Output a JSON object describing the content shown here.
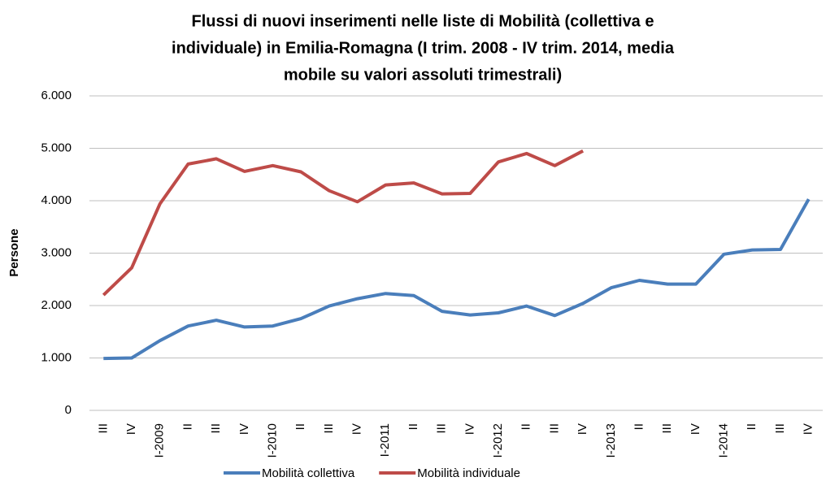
{
  "chart_data": {
    "type": "line",
    "title": [
      "Flussi di nuovi inserimenti nelle liste di Mobilità (collettiva e",
      "individuale) in Emilia-Romagna (I trim. 2008 - IV trim. 2014, media",
      "mobile su valori assoluti trimestrali)"
    ],
    "y_label": "Persone",
    "categories": [
      "III",
      "IV",
      "I-2009",
      "II",
      "III",
      "IV",
      "I-2010",
      "II",
      "III",
      "IV",
      "I-2011",
      "II",
      "III",
      "IV",
      "I-2012",
      "II",
      "III",
      "IV",
      "I-2013",
      "II",
      "III",
      "IV",
      "I-2014",
      "II",
      "III",
      "IV"
    ],
    "series": [
      {
        "name": "Mobilità collettiva",
        "color": "#4a7ebb",
        "values": [
          990,
          1000,
          1330,
          1610,
          1720,
          1590,
          1610,
          1750,
          1990,
          2130,
          2230,
          2190,
          1890,
          1820,
          1860,
          1990,
          1810,
          2040,
          2340,
          2480,
          2410,
          2410,
          2980,
          3060,
          3070,
          4030
        ]
      },
      {
        "name": "Mobilità individuale",
        "color": "#be4b48",
        "values": [
          2200,
          2720,
          3940,
          4700,
          4800,
          4560,
          4670,
          4550,
          4190,
          3980,
          4300,
          4340,
          4130,
          4140,
          4740,
          4900,
          4670,
          4950,
          null,
          null,
          null,
          null,
          null,
          null,
          null,
          null
        ]
      }
    ],
    "ylim": [
      0,
      6000
    ],
    "yticks": [
      0,
      {
        "value": 1000,
        "label": "1.000"
      },
      {
        "value": 2000,
        "label": "2.000"
      },
      {
        "value": 3000,
        "label": "3.000"
      },
      {
        "value": 4000,
        "label": "4.000"
      },
      {
        "value": 5000,
        "label": "5.000"
      },
      {
        "value": 6000,
        "label": "6.000"
      }
    ],
    "grid": true
  }
}
